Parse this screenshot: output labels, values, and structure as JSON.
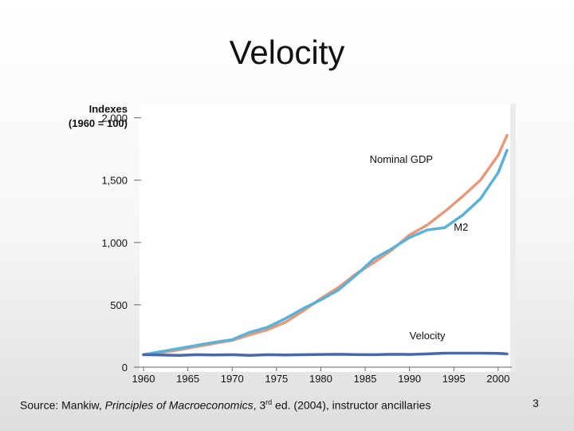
{
  "slide": {
    "title": "Velocity",
    "number": "3",
    "source": {
      "prefix": "Source: Mankiw, ",
      "book": "Principles of Macroeconomics",
      "edition_num": ", 3",
      "edition_sup": "rd",
      "suffix": " ed. (2004), instructor ancillaries"
    }
  },
  "colors": {
    "nominal_gdp": "#e59a7c",
    "m2": "#5eb1d6",
    "velocity": "#4a68ad",
    "plot_bg": "#ffffff",
    "axis": "#666666"
  },
  "chart_data": {
    "type": "line",
    "ylabel_line1": "Indexes",
    "ylabel_line2": "(1960 = 100)",
    "xlim": [
      1960,
      2001
    ],
    "ylim": [
      0,
      2100
    ],
    "x_ticks": [
      "1960",
      "1965",
      "1970",
      "1975",
      "1980",
      "1985",
      "1990",
      "1995",
      "2000"
    ],
    "y_ticks": [
      "0",
      "500",
      "1,000",
      "1,500",
      "2,000"
    ],
    "series": [
      {
        "name": "Nominal GDP",
        "color_key": "nominal_gdp",
        "label_at": [
          1985.5,
          1640
        ],
        "points": [
          [
            1960,
            100
          ],
          [
            1962,
            118
          ],
          [
            1964,
            138
          ],
          [
            1966,
            165
          ],
          [
            1968,
            190
          ],
          [
            1970,
            215
          ],
          [
            1972,
            260
          ],
          [
            1974,
            300
          ],
          [
            1976,
            360
          ],
          [
            1978,
            450
          ],
          [
            1980,
            550
          ],
          [
            1982,
            640
          ],
          [
            1984,
            750
          ],
          [
            1986,
            840
          ],
          [
            1988,
            940
          ],
          [
            1990,
            1060
          ],
          [
            1992,
            1140
          ],
          [
            1994,
            1250
          ],
          [
            1996,
            1370
          ],
          [
            1998,
            1500
          ],
          [
            2000,
            1700
          ],
          [
            2001,
            1860
          ]
        ]
      },
      {
        "name": "M2",
        "color_key": "m2",
        "label_at": [
          1995,
          1095
        ],
        "points": [
          [
            1960,
            100
          ],
          [
            1962,
            125
          ],
          [
            1964,
            150
          ],
          [
            1966,
            175
          ],
          [
            1968,
            200
          ],
          [
            1970,
            220
          ],
          [
            1972,
            280
          ],
          [
            1974,
            320
          ],
          [
            1976,
            390
          ],
          [
            1978,
            470
          ],
          [
            1980,
            540
          ],
          [
            1982,
            620
          ],
          [
            1984,
            740
          ],
          [
            1986,
            870
          ],
          [
            1988,
            950
          ],
          [
            1990,
            1040
          ],
          [
            1992,
            1100
          ],
          [
            1994,
            1120
          ],
          [
            1996,
            1220
          ],
          [
            1998,
            1350
          ],
          [
            2000,
            1560
          ],
          [
            2001,
            1740
          ]
        ]
      },
      {
        "name": "Velocity",
        "color_key": "velocity",
        "label_at": [
          1990,
          225
        ],
        "points": [
          [
            1960,
            100
          ],
          [
            1962,
            98
          ],
          [
            1964,
            95
          ],
          [
            1966,
            100
          ],
          [
            1968,
            98
          ],
          [
            1970,
            100
          ],
          [
            1972,
            95
          ],
          [
            1974,
            100
          ],
          [
            1976,
            98
          ],
          [
            1978,
            100
          ],
          [
            1980,
            102
          ],
          [
            1982,
            103
          ],
          [
            1984,
            101
          ],
          [
            1986,
            100
          ],
          [
            1988,
            103
          ],
          [
            1990,
            102
          ],
          [
            1992,
            106
          ],
          [
            1994,
            112
          ],
          [
            1996,
            112
          ],
          [
            1998,
            112
          ],
          [
            2000,
            110
          ],
          [
            2001,
            106
          ]
        ]
      }
    ]
  }
}
